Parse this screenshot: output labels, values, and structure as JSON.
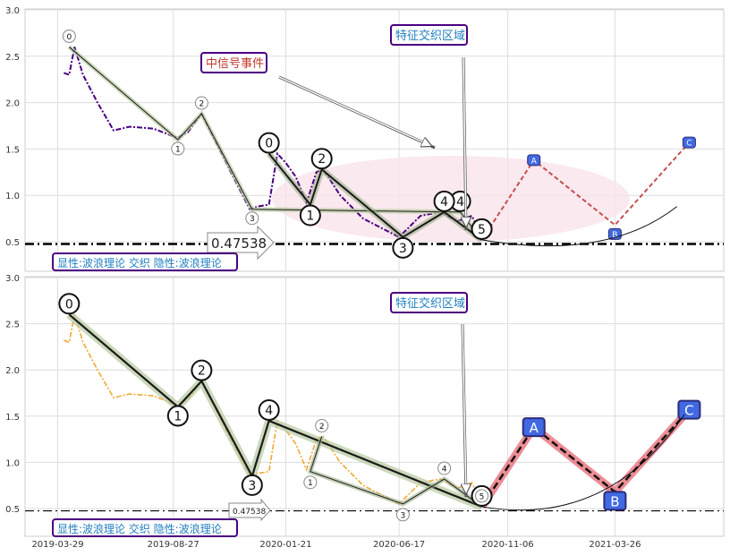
{
  "chart_data": [
    {
      "type": "line",
      "panel": "top",
      "ylim": [
        0.2,
        3.0
      ],
      "y_ticks": [
        "0.5",
        "1.0",
        "1.5",
        "2.0",
        "2.5",
        "3.0"
      ],
      "grid": true,
      "series": [
        {
          "style": "dash-dot",
          "color": "#4b0082",
          "x": [
            "2019-04-06",
            "2019-04-13",
            "2019-04-20",
            "2019-05-01",
            "2019-05-20",
            "2019-06-10",
            "2019-07-01",
            "2019-08-01",
            "2019-09-01",
            "2019-09-15",
            "2019-10-03",
            "2019-10-20",
            "2019-11-10",
            "2019-12-05",
            "2019-12-15",
            "2019-12-30",
            "2020-01-10",
            "2020-01-21",
            "2020-02-03",
            "2020-02-17",
            "2020-03-01",
            "2020-03-10",
            "2020-04-01",
            "2020-05-01",
            "2020-06-17",
            "2020-07-15",
            "2020-08-10",
            "2020-09-01",
            "2020-09-20",
            "2020-10-03"
          ],
          "y": [
            2.32,
            2.3,
            2.6,
            2.3,
            2.0,
            1.7,
            1.74,
            1.72,
            1.62,
            1.68,
            1.88,
            1.6,
            1.25,
            0.85,
            0.88,
            0.9,
            1.45,
            1.35,
            1.2,
            0.92,
            1.25,
            1.28,
            1.0,
            0.75,
            0.55,
            0.78,
            0.82,
            0.72,
            0.78,
            0.55
          ]
        }
      ],
      "wave_points": {
        "labels": [
          "0",
          "1",
          "2",
          "3",
          "4",
          "5"
        ],
        "x": [
          "2019-04-13",
          "2019-09-02",
          "2019-10-03",
          "2019-12-08",
          "2020-09-05",
          "2020-10-03"
        ],
        "y": [
          2.6,
          1.6,
          1.88,
          0.85,
          0.82,
          0.52
        ]
      },
      "sub_wave_points": {
        "labels": [
          "0",
          "1",
          "2",
          "3",
          "4",
          "5"
        ],
        "x": [
          "2019-12-30",
          "2020-02-22",
          "2020-03-08",
          "2020-06-22",
          "2020-08-15",
          "2020-10-03"
        ],
        "y": [
          1.45,
          0.9,
          1.28,
          0.55,
          0.82,
          0.52
        ]
      },
      "projection": {
        "labels": [
          "A",
          "B",
          "C"
        ],
        "x": [
          "2020-10-03",
          "2020-12-10",
          "2021-03-26",
          "2021-07-01"
        ],
        "y": [
          0.52,
          1.38,
          0.68,
          1.57
        ]
      },
      "annotations": [
        "0.47538",
        "中信号事件",
        "特征交织区域",
        "显性:波浪理论 交织 隐性:波浪理论"
      ],
      "hline": 0.47538
    },
    {
      "type": "line",
      "panel": "bottom",
      "ylim": [
        0.2,
        3.0
      ],
      "y_ticks": [
        "0.5",
        "1.0",
        "1.5",
        "2.0",
        "2.5",
        "3.0"
      ],
      "x_ticks": [
        "2019-03-29",
        "2019-08-27",
        "2020-01-21",
        "2020-06-17",
        "2020-11-06",
        "2021-03-26"
      ],
      "grid": true,
      "series": [
        {
          "style": "dash-dot",
          "color": "#f0a830",
          "x": [
            "2019-04-06",
            "2019-04-13",
            "2019-04-20",
            "2019-05-01",
            "2019-05-20",
            "2019-06-10",
            "2019-07-01",
            "2019-08-01",
            "2019-09-01",
            "2019-09-15",
            "2019-10-03",
            "2019-10-20",
            "2019-11-10",
            "2019-12-05",
            "2019-12-15",
            "2019-12-30",
            "2020-01-10",
            "2020-01-21",
            "2020-02-03",
            "2020-02-17",
            "2020-03-01",
            "2020-03-10",
            "2020-04-01",
            "2020-05-01",
            "2020-06-17",
            "2020-07-15",
            "2020-08-10",
            "2020-09-01",
            "2020-09-20",
            "2020-10-03"
          ],
          "y": [
            2.32,
            2.3,
            2.6,
            2.3,
            2.0,
            1.7,
            1.74,
            1.72,
            1.62,
            1.68,
            1.88,
            1.6,
            1.25,
            0.85,
            0.88,
            0.9,
            1.45,
            1.35,
            1.2,
            0.92,
            1.25,
            1.28,
            1.0,
            0.75,
            0.55,
            0.78,
            0.82,
            0.72,
            0.78,
            0.55
          ]
        }
      ],
      "wave_points": {
        "labels": [
          "0",
          "1",
          "2",
          "3",
          "4",
          "5"
        ],
        "x": [
          "2019-04-13",
          "2019-09-02",
          "2019-10-03",
          "2019-12-08",
          "2019-12-30",
          "2020-10-03"
        ],
        "y": [
          2.6,
          1.6,
          1.88,
          0.85,
          1.45,
          0.52
        ]
      },
      "sub_wave_points": {
        "labels": [
          "2",
          "1",
          "3",
          "4",
          "5"
        ],
        "x": [
          "2020-03-08",
          "2020-02-22",
          "2020-06-22",
          "2020-08-15",
          "2020-10-03"
        ],
        "y": [
          1.28,
          0.9,
          0.55,
          0.82,
          0.52
        ]
      },
      "projection": {
        "labels": [
          "A",
          "B",
          "C"
        ],
        "x": [
          "2020-10-03",
          "2020-12-10",
          "2021-03-26",
          "2021-07-01"
        ],
        "y": [
          0.52,
          1.38,
          0.68,
          1.57
        ]
      },
      "annotations": [
        "0.47538",
        "特征交织区域",
        "显性:波浪理论 交织 隐性:波浪理论"
      ],
      "hline": 0.47538
    }
  ],
  "labels": {
    "top_value": "0.47538",
    "bottom_value": "0.47538",
    "signal_event": "中信号事件",
    "zone_top": "特征交织区域",
    "zone_bottom": "特征交织区域",
    "legend_top": "显性:波浪理论 交织 隐性:波浪理论",
    "legend_bottom": "显性:波浪理论 交织 隐性:波浪理论"
  },
  "colors": {
    "accent_purple": "#4b0082",
    "orange_series": "#f0a830",
    "projection_fill": "#4169e1",
    "projection_line": "#e9707a",
    "zone_fill": "#f9e4ea",
    "label_text_red": "#c0392b",
    "label_text_blue": "#1f7fbf"
  }
}
